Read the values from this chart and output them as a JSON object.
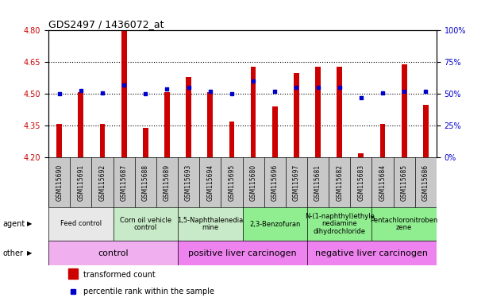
{
  "title": "GDS2497 / 1436072_at",
  "samples": [
    "GSM115690",
    "GSM115691",
    "GSM115692",
    "GSM115687",
    "GSM115688",
    "GSM115689",
    "GSM115693",
    "GSM115694",
    "GSM115695",
    "GSM115680",
    "GSM115696",
    "GSM115697",
    "GSM115681",
    "GSM115682",
    "GSM115683",
    "GSM115684",
    "GSM115685",
    "GSM115686"
  ],
  "bar_values": [
    4.36,
    4.51,
    4.36,
    4.8,
    4.34,
    4.51,
    4.58,
    4.51,
    4.37,
    4.63,
    4.44,
    4.6,
    4.63,
    4.63,
    4.22,
    4.36,
    4.64,
    4.45
  ],
  "percentile_values": [
    50,
    53,
    51,
    57,
    50,
    54,
    55,
    52,
    50,
    60,
    52,
    55,
    55,
    55,
    47,
    51,
    52,
    52
  ],
  "ymin": 4.2,
  "ymax": 4.8,
  "y2min": 0,
  "y2max": 100,
  "yticks": [
    4.2,
    4.35,
    4.5,
    4.65,
    4.8
  ],
  "y2ticks": [
    0,
    25,
    50,
    75,
    100
  ],
  "bar_color": "#cc0000",
  "percentile_color": "#0000cc",
  "dotted_lines": [
    4.35,
    4.5,
    4.65
  ],
  "agent_groups": [
    {
      "label": "Feed control",
      "start": 0,
      "end": 3,
      "color": "#e8e8e8"
    },
    {
      "label": "Corn oil vehicle\ncontrol",
      "start": 3,
      "end": 6,
      "color": "#c8eac8"
    },
    {
      "label": "1,5-Naphthalenedia\nmine",
      "start": 6,
      "end": 9,
      "color": "#c8eac8"
    },
    {
      "label": "2,3-Benzofuran",
      "start": 9,
      "end": 12,
      "color": "#90ee90"
    },
    {
      "label": "N-(1-naphthyl)ethyle\nnediamine\ndihydrochloride",
      "start": 12,
      "end": 15,
      "color": "#90ee90"
    },
    {
      "label": "Pentachloronitroben\nzene",
      "start": 15,
      "end": 18,
      "color": "#90ee90"
    }
  ],
  "other_groups": [
    {
      "label": "control",
      "start": 0,
      "end": 6,
      "color": "#f0b0f0"
    },
    {
      "label": "positive liver carcinogen",
      "start": 6,
      "end": 12,
      "color": "#ee82ee"
    },
    {
      "label": "negative liver carcinogen",
      "start": 12,
      "end": 18,
      "color": "#ee82ee"
    }
  ],
  "legend_items": [
    {
      "label": "transformed count",
      "color": "#cc0000"
    },
    {
      "label": "percentile rank within the sample",
      "color": "#0000cc"
    }
  ],
  "ylabel_left_color": "#cc0000",
  "ylabel_right_color": "#0000cc",
  "xlabels_bg": "#c8c8c8",
  "agent_label_fontsize": 6,
  "other_label_fontsize": 8
}
